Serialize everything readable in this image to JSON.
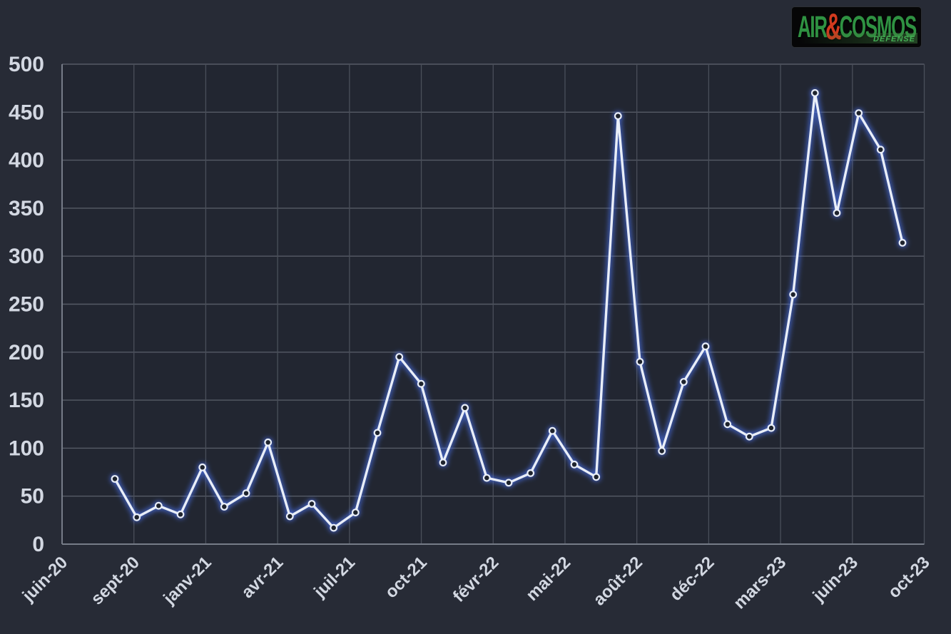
{
  "page": {
    "background": "#272b36"
  },
  "logo": {
    "air": "AIR",
    "amp": "&",
    "cosmos": "COSMOS",
    "defense": "DÉFENSE",
    "green": "#2f9242",
    "red": "#d23a1e",
    "box_bg": "#060607"
  },
  "chart_data": {
    "type": "line",
    "title": "",
    "xlabel": "",
    "ylabel": "",
    "x": [
      "sept-20",
      "oct-20",
      "nov-20",
      "déc-20",
      "janv-21",
      "févr-21",
      "mars-21",
      "avr-21",
      "mai-21",
      "juin-21",
      "juil-21",
      "août-21",
      "sept-21",
      "oct-21",
      "nov-21",
      "déc-21",
      "janv-22",
      "févr-22",
      "mars-22",
      "avr-22",
      "mai-22",
      "juin-22",
      "juil-22",
      "août-22",
      "sept-22",
      "oct-22",
      "nov-22",
      "déc-22",
      "janv-23",
      "févr-23",
      "mars-23",
      "avr-23",
      "mai-23",
      "juin-23",
      "juil-23",
      "août-23",
      "sept-23"
    ],
    "values": [
      68,
      28,
      40,
      31,
      80,
      39,
      53,
      106,
      29,
      42,
      17,
      33,
      116,
      195,
      167,
      85,
      142,
      69,
      64,
      74,
      118,
      83,
      70,
      446,
      190,
      97,
      169,
      206,
      125,
      112,
      121,
      260,
      470,
      345,
      449,
      411,
      314
    ],
    "x_tick_labels": [
      "juin-20",
      "sept-20",
      "janv-21",
      "avr-21",
      "juil-21",
      "oct-21",
      "févr-22",
      "mai-22",
      "août-22",
      "déc-22",
      "mars-23",
      "juin-23",
      "oct-23"
    ],
    "y_ticks": [
      0,
      50,
      100,
      150,
      200,
      250,
      300,
      350,
      400,
      450,
      500
    ],
    "ylim": [
      0,
      500
    ],
    "grid": true,
    "legend": "none",
    "colors": {
      "line": "#e9eef8",
      "glow": "#4a70e8",
      "marker_fill": "#1e232d",
      "grid_h": "#565b66",
      "grid_v": "#4a4f5a",
      "axis": "#767c88",
      "tick_label": "#d3d8e2",
      "plot_bg": "#222631",
      "page_bg": "#272b36"
    }
  }
}
